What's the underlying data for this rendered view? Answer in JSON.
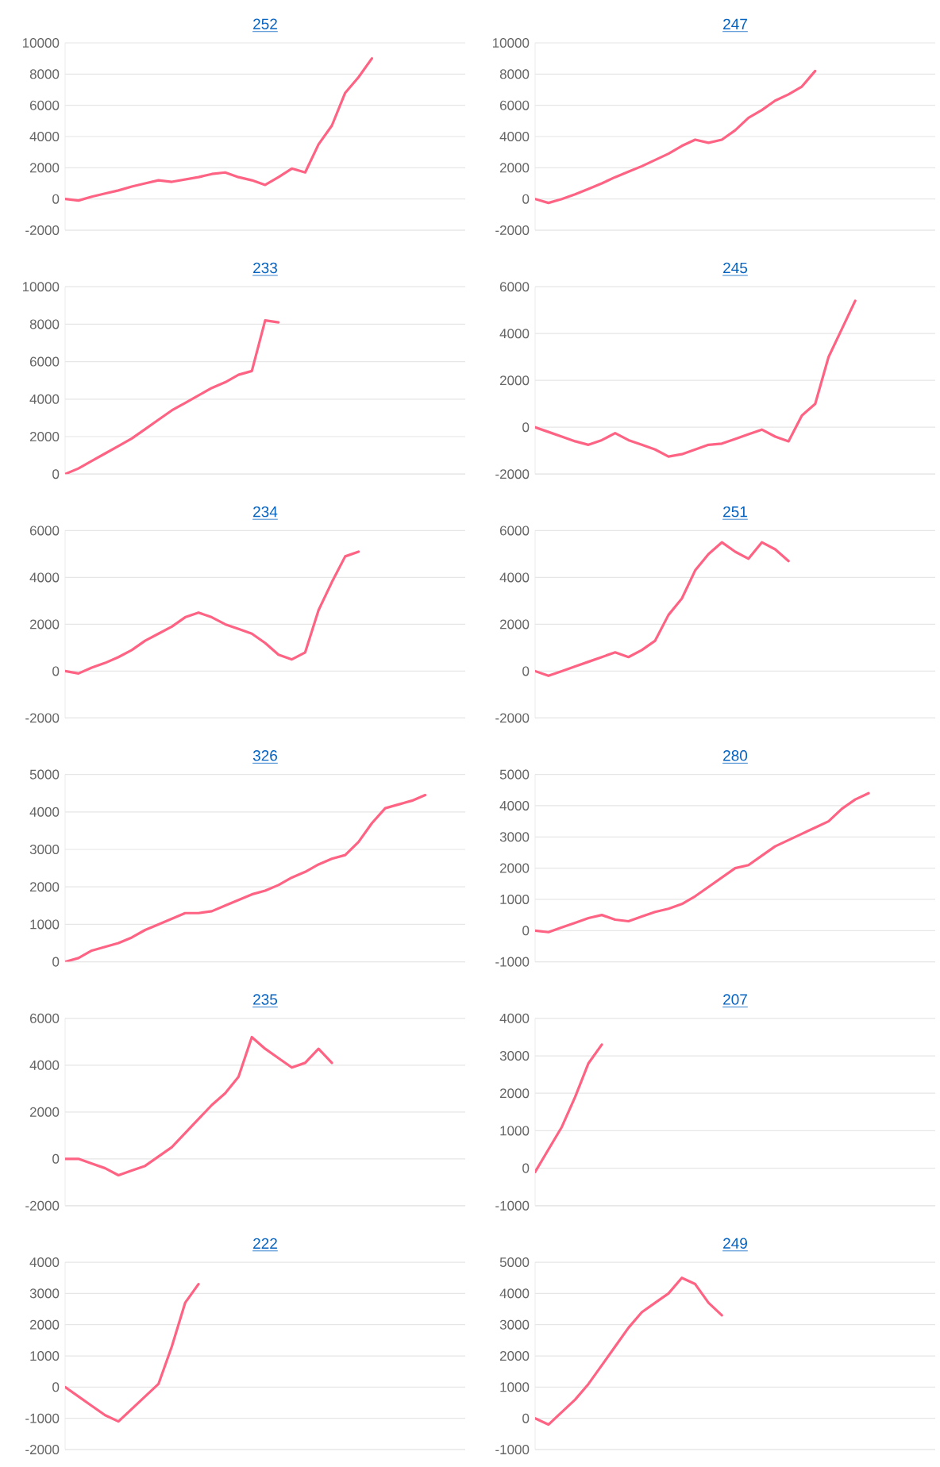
{
  "chart_data": [
    {
      "type": "line",
      "title": "252",
      "categories": [
        null,
        null,
        null,
        null,
        null,
        null,
        null,
        null,
        null,
        null,
        null,
        null,
        null,
        null,
        null,
        null,
        null,
        null,
        null,
        null,
        null,
        null,
        null,
        null,
        null,
        null,
        null,
        null,
        null,
        null,
        null
      ],
      "series": [
        {
          "color": "#ff6384",
          "values": [
            0,
            -100,
            150,
            350,
            550,
            800,
            1000,
            1200,
            1100,
            1250,
            1400,
            1600,
            1700,
            1400,
            1200,
            900,
            1400,
            1950,
            1700,
            3500,
            4700,
            6800,
            7800,
            9000,
            null,
            null,
            null,
            null,
            null,
            null,
            null
          ]
        }
      ],
      "ylim": [
        -2000,
        10000
      ],
      "yticks": [
        -2000,
        0,
        2000,
        4000,
        6000,
        8000,
        10000
      ],
      "grid": "y",
      "tick_labels": "y",
      "marker": "none"
    },
    {
      "type": "line",
      "title": "247",
      "categories": [
        null,
        null,
        null,
        null,
        null,
        null,
        null,
        null,
        null,
        null,
        null,
        null,
        null,
        null,
        null,
        null,
        null,
        null,
        null,
        null,
        null,
        null,
        null,
        null,
        null,
        null,
        null,
        null,
        null,
        null,
        null
      ],
      "series": [
        {
          "color": "#ff6384",
          "values": [
            0,
            -250,
            0,
            300,
            650,
            1000,
            1400,
            1750,
            2100,
            2500,
            2900,
            3400,
            3800,
            3600,
            3800,
            4400,
            5200,
            5700,
            6300,
            6700,
            7200,
            8200,
            null,
            null,
            null,
            null,
            null,
            null,
            null,
            null,
            null
          ]
        }
      ],
      "ylim": [
        -2000,
        10000
      ],
      "yticks": [
        -2000,
        0,
        2000,
        4000,
        6000,
        8000,
        10000
      ],
      "grid": "y",
      "tick_labels": "y",
      "marker": "none"
    },
    {
      "type": "line",
      "title": "233",
      "categories": [
        null,
        null,
        null,
        null,
        null,
        null,
        null,
        null,
        null,
        null,
        null,
        null,
        null,
        null,
        null,
        null,
        null,
        null,
        null,
        null,
        null,
        null,
        null,
        null,
        null,
        null,
        null,
        null,
        null,
        null,
        null
      ],
      "series": [
        {
          "color": "#ff6384",
          "values": [
            0,
            300,
            700,
            1100,
            1500,
            1900,
            2400,
            2900,
            3400,
            3800,
            4200,
            4600,
            4900,
            5300,
            5500,
            8200,
            8100,
            null,
            null,
            null,
            null,
            null,
            null,
            null,
            null,
            null,
            null,
            null,
            null,
            null,
            null
          ]
        }
      ],
      "ylim": [
        0,
        10000
      ],
      "yticks": [
        0,
        2000,
        4000,
        6000,
        8000,
        10000
      ],
      "grid": "y",
      "tick_labels": "y",
      "marker": "none"
    },
    {
      "type": "line",
      "title": "245",
      "categories": [
        null,
        null,
        null,
        null,
        null,
        null,
        null,
        null,
        null,
        null,
        null,
        null,
        null,
        null,
        null,
        null,
        null,
        null,
        null,
        null,
        null,
        null,
        null,
        null,
        null,
        null,
        null,
        null,
        null,
        null,
        null
      ],
      "series": [
        {
          "color": "#ff6384",
          "values": [
            0,
            -200,
            -400,
            -600,
            -750,
            -550,
            -250,
            -550,
            -750,
            -950,
            -1250,
            -1150,
            -950,
            -750,
            -700,
            -500,
            -300,
            -100,
            -400,
            -600,
            500,
            1000,
            3000,
            4200,
            5400,
            null,
            null,
            null,
            null,
            null,
            null
          ]
        }
      ],
      "ylim": [
        -2000,
        6000
      ],
      "yticks": [
        -2000,
        0,
        2000,
        4000,
        6000
      ],
      "grid": "y",
      "tick_labels": "y",
      "marker": "none"
    },
    {
      "type": "line",
      "title": "234",
      "categories": [
        null,
        null,
        null,
        null,
        null,
        null,
        null,
        null,
        null,
        null,
        null,
        null,
        null,
        null,
        null,
        null,
        null,
        null,
        null,
        null,
        null,
        null,
        null,
        null,
        null,
        null,
        null,
        null,
        null,
        null,
        null
      ],
      "series": [
        {
          "color": "#ff6384",
          "values": [
            0,
            -100,
            150,
            350,
            600,
            900,
            1300,
            1600,
            1900,
            2300,
            2500,
            2300,
            2000,
            1800,
            1600,
            1200,
            700,
            500,
            800,
            2600,
            3800,
            4900,
            5100,
            null,
            null,
            null,
            null,
            null,
            null,
            null,
            null
          ]
        }
      ],
      "ylim": [
        -2000,
        6000
      ],
      "yticks": [
        -2000,
        0,
        2000,
        4000,
        6000
      ],
      "grid": "y",
      "tick_labels": "y",
      "marker": "none"
    },
    {
      "type": "line",
      "title": "251",
      "categories": [
        null,
        null,
        null,
        null,
        null,
        null,
        null,
        null,
        null,
        null,
        null,
        null,
        null,
        null,
        null,
        null,
        null,
        null,
        null,
        null,
        null,
        null,
        null,
        null,
        null,
        null,
        null,
        null,
        null,
        null,
        null
      ],
      "series": [
        {
          "color": "#ff6384",
          "values": [
            0,
            -200,
            0,
            200,
            400,
            600,
            800,
            600,
            900,
            1300,
            2400,
            3100,
            4300,
            5000,
            5500,
            5100,
            4800,
            5500,
            5200,
            4700,
            null,
            null,
            null,
            null,
            null,
            null,
            null,
            null,
            null,
            null,
            null
          ]
        }
      ],
      "ylim": [
        -2000,
        6000
      ],
      "yticks": [
        -2000,
        0,
        2000,
        4000,
        6000
      ],
      "grid": "y",
      "tick_labels": "y",
      "marker": "none"
    },
    {
      "type": "line",
      "title": "326",
      "categories": [
        null,
        null,
        null,
        null,
        null,
        null,
        null,
        null,
        null,
        null,
        null,
        null,
        null,
        null,
        null,
        null,
        null,
        null,
        null,
        null,
        null,
        null,
        null,
        null,
        null,
        null,
        null,
        null,
        null,
        null,
        null
      ],
      "series": [
        {
          "color": "#ff6384",
          "values": [
            0,
            100,
            300,
            400,
            500,
            650,
            850,
            1000,
            1150,
            1300,
            1300,
            1350,
            1500,
            1650,
            1800,
            1900,
            2050,
            2250,
            2400,
            2600,
            2750,
            2850,
            3200,
            3700,
            4100,
            4200,
            4300,
            4450,
            null,
            null,
            null
          ]
        }
      ],
      "ylim": [
        0,
        5000
      ],
      "yticks": [
        0,
        1000,
        2000,
        3000,
        4000,
        5000
      ],
      "grid": "y",
      "tick_labels": "y",
      "marker": "none"
    },
    {
      "type": "line",
      "title": "280",
      "categories": [
        null,
        null,
        null,
        null,
        null,
        null,
        null,
        null,
        null,
        null,
        null,
        null,
        null,
        null,
        null,
        null,
        null,
        null,
        null,
        null,
        null,
        null,
        null,
        null,
        null,
        null,
        null,
        null,
        null,
        null,
        null
      ],
      "series": [
        {
          "color": "#ff6384",
          "values": [
            0,
            -50,
            100,
            250,
            400,
            500,
            350,
            300,
            450,
            600,
            700,
            850,
            1100,
            1400,
            1700,
            2000,
            2100,
            2400,
            2700,
            2900,
            3100,
            3300,
            3500,
            3900,
            4200,
            4400,
            null,
            null,
            null,
            null,
            null
          ]
        }
      ],
      "ylim": [
        -1000,
        5000
      ],
      "yticks": [
        -1000,
        0,
        1000,
        2000,
        3000,
        4000,
        5000
      ],
      "grid": "y",
      "tick_labels": "y",
      "marker": "none"
    },
    {
      "type": "line",
      "title": "235",
      "categories": [
        null,
        null,
        null,
        null,
        null,
        null,
        null,
        null,
        null,
        null,
        null,
        null,
        null,
        null,
        null,
        null,
        null,
        null,
        null,
        null,
        null,
        null,
        null,
        null,
        null,
        null,
        null,
        null,
        null,
        null,
        null
      ],
      "series": [
        {
          "color": "#ff6384",
          "values": [
            0,
            0,
            -200,
            -400,
            -700,
            -500,
            -300,
            100,
            500,
            1100,
            1700,
            2300,
            2800,
            3500,
            5200,
            4700,
            4300,
            3900,
            4100,
            4700,
            4100,
            null,
            null,
            null,
            null,
            null,
            null,
            null,
            null,
            null,
            null
          ]
        }
      ],
      "ylim": [
        -2000,
        6000
      ],
      "yticks": [
        -2000,
        0,
        2000,
        4000,
        6000
      ],
      "grid": "y",
      "tick_labels": "y",
      "marker": "none"
    },
    {
      "type": "line",
      "title": "207",
      "categories": [
        null,
        null,
        null,
        null,
        null,
        null,
        null,
        null,
        null,
        null,
        null,
        null,
        null,
        null,
        null,
        null,
        null,
        null,
        null,
        null,
        null,
        null,
        null,
        null,
        null,
        null,
        null,
        null,
        null,
        null,
        null
      ],
      "series": [
        {
          "color": "#ff6384",
          "values": [
            -100,
            500,
            1100,
            1900,
            2800,
            3300,
            null,
            null,
            null,
            null,
            null,
            null,
            null,
            null,
            null,
            null,
            null,
            null,
            null,
            null,
            null,
            null,
            null,
            null,
            null,
            null,
            null,
            null,
            null,
            null,
            null
          ]
        }
      ],
      "ylim": [
        -1000,
        4000
      ],
      "yticks": [
        -1000,
        0,
        1000,
        2000,
        3000,
        4000
      ],
      "grid": "y",
      "tick_labels": "y",
      "marker": "none"
    },
    {
      "type": "line",
      "title": "222",
      "categories": [
        null,
        null,
        null,
        null,
        null,
        null,
        null,
        null,
        null,
        null,
        null,
        null,
        null,
        null,
        null,
        null,
        null,
        null,
        null,
        null,
        null,
        null,
        null,
        null,
        null,
        null,
        null,
        null,
        null,
        null,
        null
      ],
      "series": [
        {
          "color": "#ff6384",
          "values": [
            0,
            -300,
            -600,
            -900,
            -1100,
            -700,
            -300,
            100,
            1300,
            2700,
            3300,
            null,
            null,
            null,
            null,
            null,
            null,
            null,
            null,
            null,
            null,
            null,
            null,
            null,
            null,
            null,
            null,
            null,
            null,
            null,
            null
          ]
        }
      ],
      "ylim": [
        -2000,
        4000
      ],
      "yticks": [
        -2000,
        -1000,
        0,
        1000,
        2000,
        3000,
        4000
      ],
      "grid": "y",
      "tick_labels": "y",
      "marker": "none"
    },
    {
      "type": "line",
      "title": "249",
      "categories": [
        null,
        null,
        null,
        null,
        null,
        null,
        null,
        null,
        null,
        null,
        null,
        null,
        null,
        null,
        null,
        null,
        null,
        null,
        null,
        null,
        null,
        null,
        null,
        null,
        null,
        null,
        null,
        null,
        null,
        null,
        null
      ],
      "series": [
        {
          "color": "#ff6384",
          "values": [
            0,
            -200,
            200,
            600,
            1100,
            1700,
            2300,
            2900,
            3400,
            3700,
            4000,
            4500,
            4300,
            3700,
            3300,
            null,
            null,
            null,
            null,
            null,
            null,
            null,
            null,
            null,
            null,
            null,
            null,
            null,
            null,
            null,
            null
          ]
        }
      ],
      "ylim": [
        -1000,
        5000
      ],
      "yticks": [
        -1000,
        0,
        1000,
        2000,
        3000,
        4000,
        5000
      ],
      "grid": "y",
      "tick_labels": "y",
      "marker": "none"
    }
  ]
}
